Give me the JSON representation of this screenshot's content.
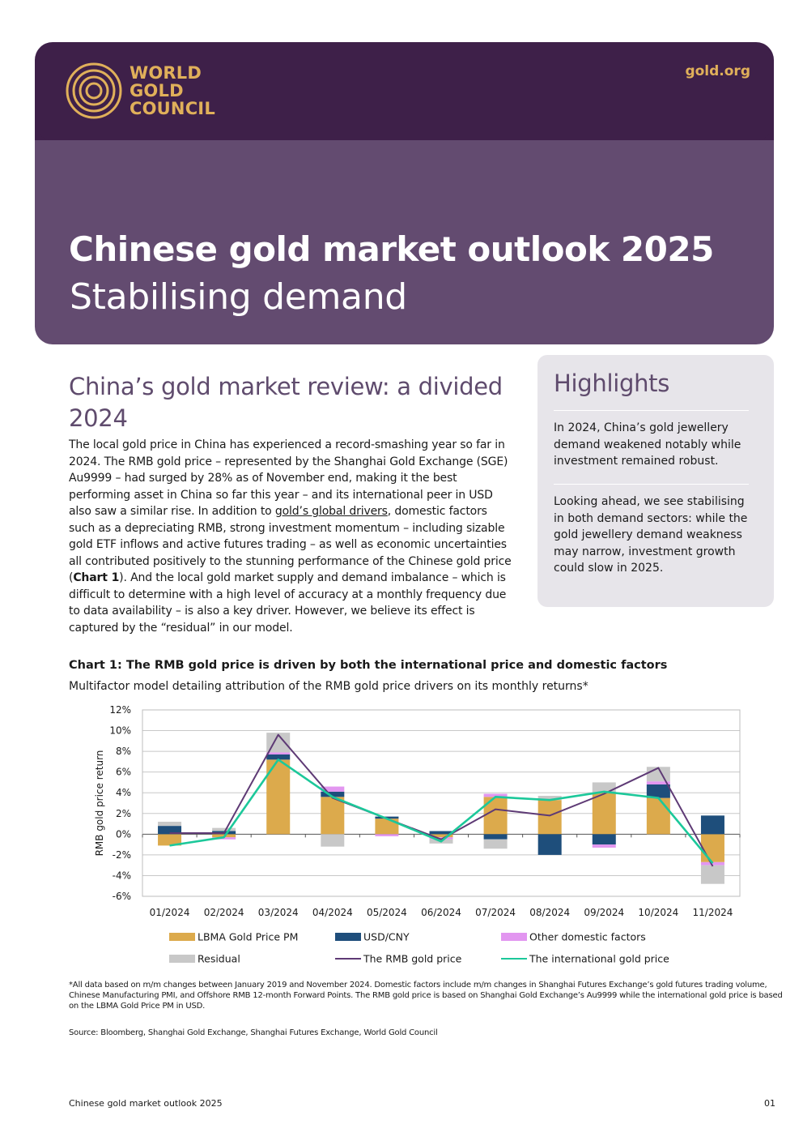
{
  "header": {
    "logo_lines": [
      "WORLD",
      "GOLD",
      "COUNCIL"
    ],
    "site": "gold.org",
    "title": "Chinese gold market outlook 2025",
    "subtitle": "Stabilising demand",
    "colors": {
      "dark": "#3e2049",
      "band": "#634b70",
      "gold": "#e0b05a"
    }
  },
  "review": {
    "heading": "China’s gold market review: a divided 2024",
    "p_before_link": "The local gold price in China has experienced a record-smashing year so far in 2024. The RMB gold price – represented by the Shanghai Gold Exchange (SGE) Au9999 – had surged by 28% as of November end, making it the best performing asset in China so far this year – and its international peer in USD also saw a similar rise. In addition to ",
    "link_text": "gold’s global drivers",
    "p_after_link": ", domestic factors such as a depreciating RMB, strong investment momentum – including sizable gold ETF inflows and active futures trading – as well as economic uncertainties all contributed positively to the stunning performance of the Chinese gold price (",
    "chart_ref": "Chart 1",
    "p_end": "). And the local gold market supply and demand imbalance – which is difficult to determine with a high level of accuracy at a monthly frequency due to data availability – is also a key driver. However, we believe its effect is captured by the “residual” in our model."
  },
  "highlights": {
    "title": "Highlights",
    "p1": "In 2024, China’s gold jewellery demand weakened notably while investment remained robust.",
    "p2": "Looking ahead, we see stabilising in both demand sectors: while the gold jewellery demand weakness may narrow, investment growth could slow in 2025."
  },
  "chart": {
    "title": "Chart 1: The RMB gold price is driven by both the international price and domestic factors",
    "subtitle": "Multifactor model detailing attribution of the RMB gold price drivers on its monthly returns*"
  },
  "chart_data": {
    "type": "bar",
    "stacked": true,
    "categories": [
      "01/2024",
      "02/2024",
      "03/2024",
      "04/2024",
      "05/2024",
      "06/2024",
      "07/2024",
      "08/2024",
      "09/2024",
      "10/2024",
      "11/2024"
    ],
    "ylabel": "RMB gold price return",
    "ylim": [
      -6,
      12
    ],
    "yticks": [
      "-6%",
      "-4%",
      "-2%",
      "0%",
      "2%",
      "4%",
      "6%",
      "8%",
      "10%",
      "12%"
    ],
    "grid": true,
    "legend_position": "bottom",
    "series": [
      {
        "name": "LBMA Gold Price PM",
        "kind": "bar",
        "color": "#dcaa4c",
        "values": [
          -1.1,
          -0.3,
          7.2,
          3.6,
          1.5,
          -0.3,
          3.6,
          3.3,
          4.0,
          3.5,
          -2.7
        ]
      },
      {
        "name": "USD/CNY",
        "kind": "bar",
        "color": "#1e4e7b",
        "values": [
          0.8,
          0.3,
          0.5,
          0.5,
          0.2,
          0.3,
          -0.5,
          -2.0,
          -1.0,
          1.3,
          1.8
        ]
      },
      {
        "name": "Other domestic factors",
        "kind": "bar",
        "color": "#e296f0",
        "values": [
          0.0,
          -0.2,
          0.2,
          0.5,
          -0.2,
          -0.2,
          0.3,
          0.0,
          -0.3,
          0.3,
          -0.3
        ]
      },
      {
        "name": "Residual",
        "kind": "bar",
        "color": "#c8c8c8",
        "values": [
          0.4,
          0.3,
          1.9,
          -1.2,
          0.0,
          -0.4,
          -0.9,
          0.4,
          1.0,
          1.4,
          -1.8
        ]
      },
      {
        "name": "The RMB gold price",
        "kind": "line",
        "color": "#5e3a75",
        "values": [
          0.1,
          0.1,
          9.6,
          3.5,
          1.5,
          -0.5,
          2.4,
          1.8,
          3.9,
          6.4,
          -3.1
        ]
      },
      {
        "name": "The international gold price",
        "kind": "line",
        "color": "#1cc89a",
        "values": [
          -1.1,
          -0.3,
          7.2,
          3.6,
          1.5,
          -0.7,
          3.6,
          3.3,
          4.1,
          3.5,
          -2.8
        ]
      }
    ]
  },
  "footnote": "*All data based on m/m changes between January 2019 and November 2024. Domestic factors include m/m changes in Shanghai Futures Exchange’s gold futures trading volume, Chinese Manufacturing PMI, and Offshore RMB 12-month Forward Points.  The RMB gold price is based on Shanghai Gold Exchange’s Au9999 while the international gold price is based on the LBMA Gold Price PM in USD.",
  "source": "Source: Bloomberg, Shanghai Gold Exchange, Shanghai Futures Exchange, World Gold Council",
  "footer": {
    "left": "Chinese gold market outlook 2025",
    "page": "01"
  }
}
